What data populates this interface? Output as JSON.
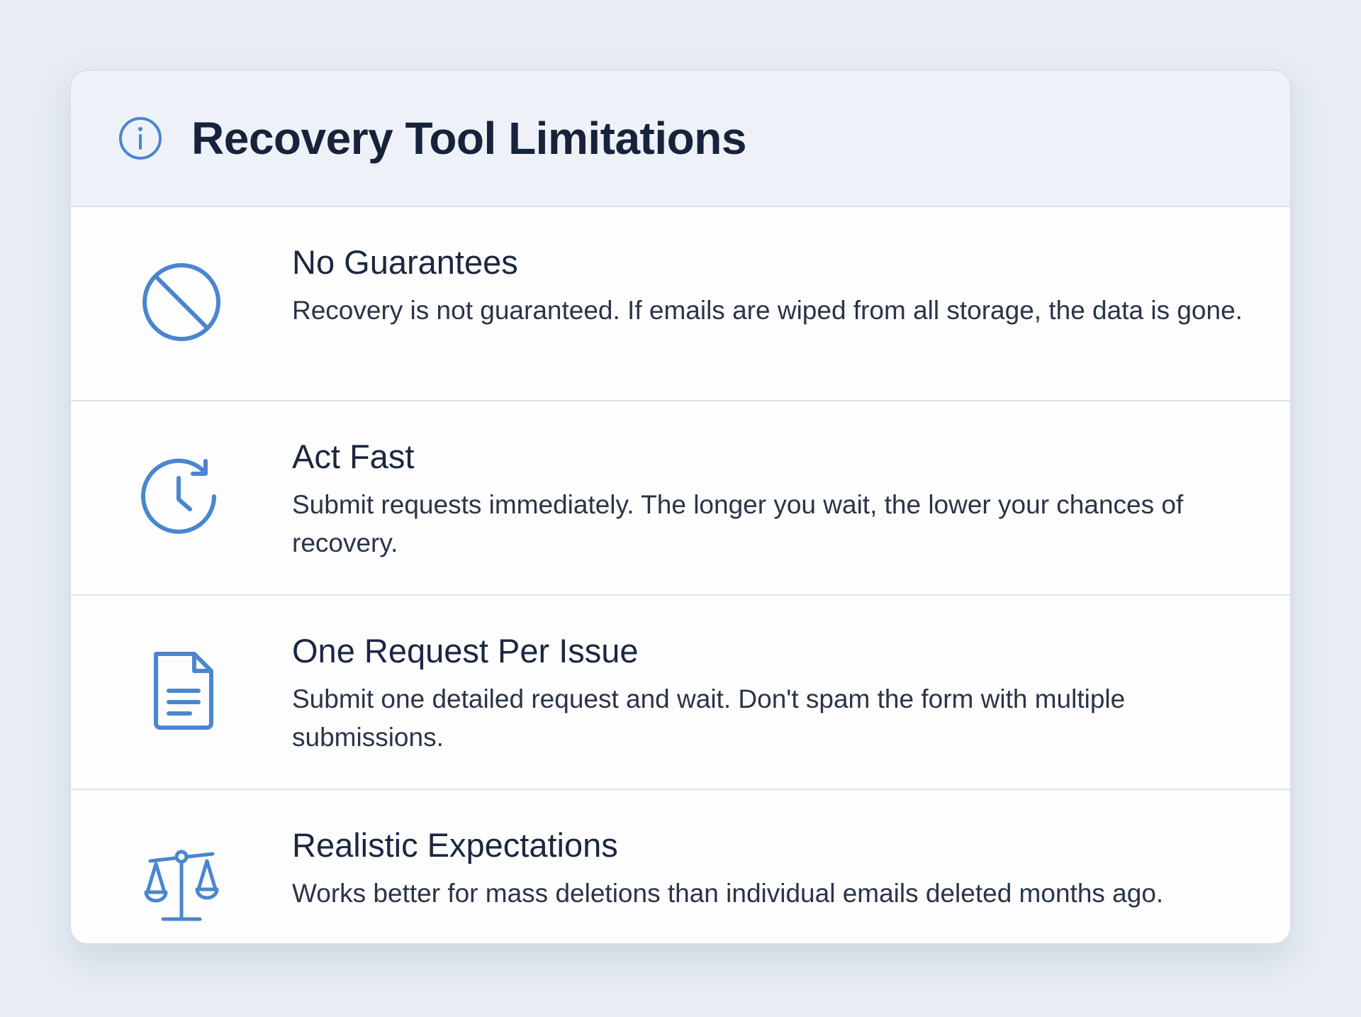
{
  "header": {
    "title": "Recovery Tool Limitations",
    "icon": "info-icon"
  },
  "accent_color": "#4a86d0",
  "items": [
    {
      "icon": "no-entry-icon",
      "title": "No Guarantees",
      "description": "Recovery is not guaranteed. If emails are wiped from all storage, the data is gone."
    },
    {
      "icon": "clock-refresh-icon",
      "title": "Act Fast",
      "description": "Submit requests immediately. The longer you wait, the lower your chances of recovery."
    },
    {
      "icon": "document-icon",
      "title": "One Request Per Issue",
      "description": "Submit one detailed request and wait. Don't spam the form with multiple submissions."
    },
    {
      "icon": "scales-icon",
      "title": "Realistic Expectations",
      "description": "Works better for mass deletions than individual emails deleted months ago."
    }
  ]
}
